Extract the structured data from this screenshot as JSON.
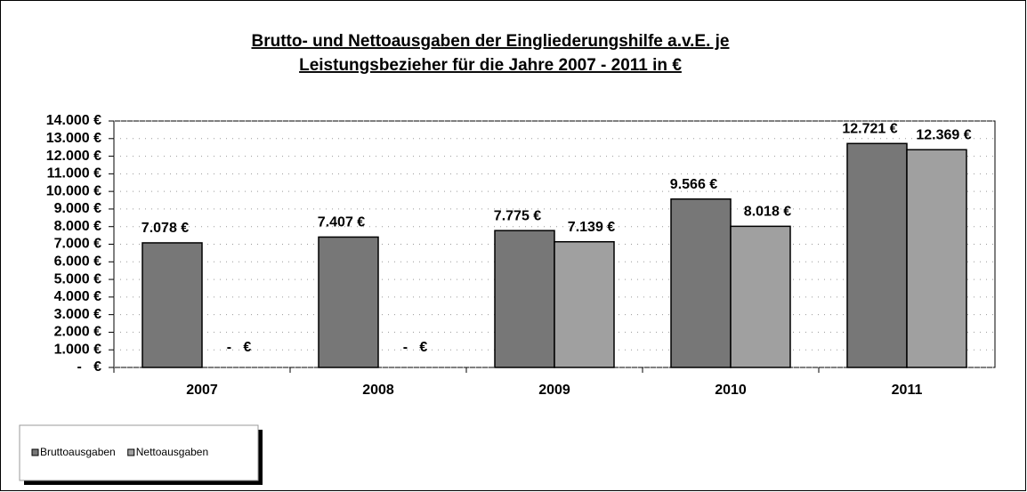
{
  "chart_data": {
    "type": "bar",
    "title": [
      "Brutto- und Nettoausgaben der Eingliederungshilfe a.v.E. je",
      "Leistungsbezieher für die Jahre 2007 - 2011 in €"
    ],
    "categories": [
      "2007",
      "2008",
      "2009",
      "2010",
      "2011"
    ],
    "series": [
      {
        "name": "Bruttoausgaben",
        "color": "#777777",
        "values": [
          7078,
          7407,
          7775,
          9566,
          12721
        ],
        "value_labels": [
          "7.078 €",
          "7.407 €",
          "7.775 €",
          "9.566 €",
          "12.721 €"
        ]
      },
      {
        "name": "Nettoausgaben",
        "color": "#a0a0a0",
        "values": [
          0,
          0,
          7139,
          8018,
          12369
        ],
        "value_labels": [
          "-   €",
          "-   €",
          "7.139 €",
          "8.018 €",
          "12.369 €"
        ]
      }
    ],
    "ylim": [
      0,
      14000
    ],
    "yticks": [
      {
        "value": 0,
        "label": "-   €"
      },
      {
        "value": 1000,
        "label": "1.000 €"
      },
      {
        "value": 2000,
        "label": "2.000 €"
      },
      {
        "value": 3000,
        "label": "3.000 €"
      },
      {
        "value": 4000,
        "label": "4.000 €"
      },
      {
        "value": 5000,
        "label": "5.000 €"
      },
      {
        "value": 6000,
        "label": "6.000 €"
      },
      {
        "value": 7000,
        "label": "7.000 €"
      },
      {
        "value": 8000,
        "label": "8.000 €"
      },
      {
        "value": 9000,
        "label": "9.000 €"
      },
      {
        "value": 10000,
        "label": "10.000 €"
      },
      {
        "value": 11000,
        "label": "11.000 €"
      },
      {
        "value": 12000,
        "label": "12.000 €"
      },
      {
        "value": 13000,
        "label": "13.000 €"
      },
      {
        "value": 14000,
        "label": "14.000 €"
      }
    ],
    "grid": true,
    "legend": "bottom-left"
  }
}
